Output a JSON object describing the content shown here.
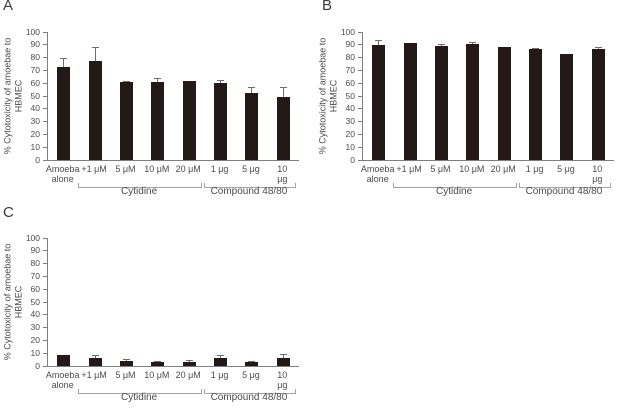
{
  "figure": {
    "panels": [
      {
        "label": "A"
      },
      {
        "label": "B"
      },
      {
        "label": "C"
      }
    ]
  },
  "chart_data": [
    {
      "type": "bar",
      "panel": "A",
      "ylabel": "% Cytotoxicity of amoebae to\nHBMEC",
      "xlabel": "",
      "ylim": [
        0,
        100
      ],
      "yticks": [
        0,
        10,
        20,
        30,
        40,
        50,
        60,
        70,
        80,
        90,
        100
      ],
      "categories": [
        "Amoeba\nalone",
        "+1 μM",
        "5 μM",
        "10 μM",
        "20 μM",
        "1 μg",
        "5 μg",
        "10 μg"
      ],
      "values": [
        73,
        77,
        61,
        61,
        62,
        60,
        52,
        49
      ],
      "errors": [
        7,
        11,
        1,
        3,
        0,
        2.5,
        5,
        8
      ],
      "groups": [
        {
          "label": "Cytidine",
          "from": 1,
          "to": 4
        },
        {
          "label": "Compound 48/80",
          "from": 5,
          "to": 7
        }
      ],
      "bar_color": "#231a17",
      "grid": false,
      "legend": "none"
    },
    {
      "type": "bar",
      "panel": "B",
      "ylabel": "% Cytotoxicity of amoebae to\nHBMEC",
      "xlabel": "",
      "ylim": [
        0,
        100
      ],
      "yticks": [
        0,
        10,
        20,
        30,
        40,
        50,
        60,
        70,
        80,
        90,
        100
      ],
      "categories": [
        "Amoeba\nalone",
        "+1 μM",
        "5 μM",
        "10 μM",
        "20 μM",
        "1 μg",
        "5 μg",
        "10 μg"
      ],
      "values": [
        90,
        91.5,
        89,
        91,
        88.5,
        86.5,
        82.5,
        87
      ],
      "errors": [
        3.5,
        0,
        2,
        1,
        0,
        1,
        0,
        1.5
      ],
      "groups": [
        {
          "label": "Cytidine",
          "from": 1,
          "to": 4
        },
        {
          "label": "Compound 48/80",
          "from": 5,
          "to": 7
        }
      ],
      "bar_color": "#231a17",
      "grid": false,
      "legend": "none"
    },
    {
      "type": "bar",
      "panel": "C",
      "ylabel": "% Cytotoxicity of amoebae to\nHBMEC",
      "xlabel": "",
      "ylim": [
        0,
        100
      ],
      "yticks": [
        0,
        10,
        20,
        30,
        40,
        50,
        60,
        70,
        80,
        90,
        100
      ],
      "categories": [
        "Amoeba\nalone",
        "+1 μM",
        "5 μM",
        "10 μM",
        "20 μM",
        "1 μg",
        "5 μg",
        "10 μg"
      ],
      "values": [
        8.5,
        6.5,
        4,
        3,
        3,
        6,
        3,
        6.5
      ],
      "errors": [
        0,
        2.5,
        1.5,
        1,
        1.5,
        3,
        1,
        3
      ],
      "groups": [
        {
          "label": "Cytidine",
          "from": 1,
          "to": 4
        },
        {
          "label": "Compound 48/80",
          "from": 5,
          "to": 7
        }
      ],
      "bar_color": "#231a17",
      "grid": false,
      "legend": "none"
    }
  ]
}
